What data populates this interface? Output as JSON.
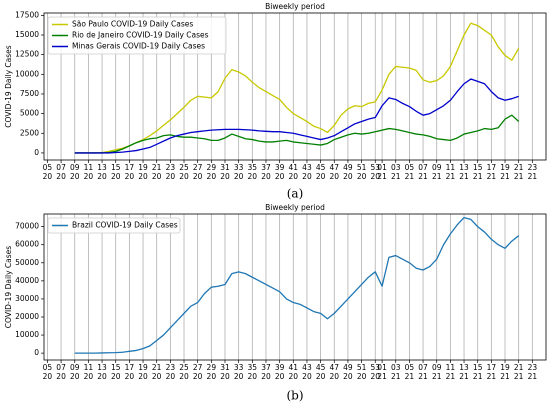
{
  "chart_data": [
    {
      "type": "line",
      "caption": "(a)",
      "x_label": "Biweekly period",
      "y_label": "COVID-19 Daily Cases",
      "x": [
        9,
        10,
        11,
        12,
        13,
        14,
        15,
        16,
        17,
        18,
        19,
        20,
        21,
        22,
        23,
        24,
        25,
        26,
        27,
        28,
        29,
        30,
        31,
        32,
        33,
        34,
        35,
        36,
        37,
        38,
        39,
        40,
        41,
        42,
        43,
        44,
        45,
        46,
        47,
        48,
        49,
        50,
        51,
        52,
        53,
        54,
        55,
        56,
        57,
        58,
        59,
        60,
        61,
        62,
        63,
        64,
        65,
        66,
        67,
        68,
        69,
        70,
        71,
        72,
        73,
        74
      ],
      "series": [
        {
          "name": "São Paulo COVID-19 Daily Cases",
          "color": "#c8c800",
          "values": [
            0,
            0,
            0,
            0,
            50,
            200,
            400,
            600,
            900,
            1300,
            1700,
            2200,
            2800,
            3500,
            4200,
            5000,
            5800,
            6700,
            7200,
            7100,
            7000,
            7800,
            9500,
            10600,
            10300,
            9800,
            9000,
            8300,
            7800,
            7300,
            6800,
            5800,
            5000,
            4500,
            4000,
            3400,
            3100,
            2600,
            3500,
            4800,
            5600,
            6000,
            5900,
            6300,
            6500,
            8000,
            10000,
            11000,
            10900,
            10800,
            10500,
            9300,
            9000,
            9200,
            9800,
            11000,
            13000,
            15000,
            16500,
            16200,
            15600,
            15000,
            13500,
            12400,
            11800,
            13300
          ]
        },
        {
          "name": "Rio de Janeiro COVID-19 Daily Cases",
          "color": "#008000",
          "values": [
            0,
            0,
            0,
            0,
            0,
            50,
            200,
            500,
            900,
            1300,
            1600,
            1800,
            1900,
            2200,
            2300,
            2100,
            2000,
            2000,
            1900,
            1800,
            1600,
            1600,
            1900,
            2400,
            2100,
            1800,
            1700,
            1500,
            1400,
            1400,
            1500,
            1600,
            1400,
            1300,
            1200,
            1100,
            1000,
            1200,
            1700,
            2000,
            2300,
            2500,
            2400,
            2500,
            2700,
            2900,
            3100,
            3000,
            2800,
            2600,
            2400,
            2300,
            2100,
            1800,
            1700,
            1600,
            1900,
            2400,
            2600,
            2800,
            3100,
            3000,
            3200,
            4300,
            4800,
            4000
          ]
        },
        {
          "name": "Minas Gerais COVID-19 Daily Cases",
          "color": "#0000cd",
          "values": [
            0,
            0,
            0,
            0,
            0,
            0,
            50,
            100,
            200,
            300,
            500,
            700,
            1100,
            1500,
            1900,
            2200,
            2400,
            2600,
            2700,
            2800,
            2900,
            2950,
            3000,
            3000,
            3000,
            2950,
            2900,
            2800,
            2750,
            2700,
            2700,
            2600,
            2500,
            2300,
            2100,
            1900,
            1700,
            1900,
            2200,
            2700,
            3200,
            3700,
            4000,
            4300,
            4500,
            6000,
            7000,
            6800,
            6300,
            5900,
            5300,
            4800,
            5000,
            5500,
            6000,
            6700,
            7800,
            8800,
            9400,
            9100,
            8800,
            7800,
            7000,
            6700,
            6900,
            7200
          ]
        }
      ],
      "xlim": [
        4.5,
        78
      ],
      "xticks": [
        {
          "value": 5,
          "label": [
            "05",
            "20"
          ]
        },
        {
          "value": 7,
          "label": [
            "07",
            "20"
          ]
        },
        {
          "value": 9,
          "label": [
            "09",
            "20"
          ]
        },
        {
          "value": 11,
          "label": [
            "11",
            "20"
          ]
        },
        {
          "value": 13,
          "label": [
            "13",
            "20"
          ]
        },
        {
          "value": 15,
          "label": [
            "15",
            "20"
          ]
        },
        {
          "value": 17,
          "label": [
            "17",
            "20"
          ]
        },
        {
          "value": 19,
          "label": [
            "19",
            "20"
          ]
        },
        {
          "value": 21,
          "label": [
            "21",
            "20"
          ]
        },
        {
          "value": 23,
          "label": [
            "23",
            "20"
          ]
        },
        {
          "value": 25,
          "label": [
            "25",
            "20"
          ]
        },
        {
          "value": 27,
          "label": [
            "27",
            "20"
          ]
        },
        {
          "value": 29,
          "label": [
            "29",
            "20"
          ]
        },
        {
          "value": 31,
          "label": [
            "31",
            "20"
          ]
        },
        {
          "value": 33,
          "label": [
            "33",
            "20"
          ]
        },
        {
          "value": 35,
          "label": [
            "35",
            "20"
          ]
        },
        {
          "value": 37,
          "label": [
            "37",
            "20"
          ]
        },
        {
          "value": 39,
          "label": [
            "39",
            "20"
          ]
        },
        {
          "value": 41,
          "label": [
            "41",
            "20"
          ]
        },
        {
          "value": 43,
          "label": [
            "43",
            "20"
          ]
        },
        {
          "value": 45,
          "label": [
            "45",
            "20"
          ]
        },
        {
          "value": 47,
          "label": [
            "47",
            "20"
          ]
        },
        {
          "value": 49,
          "label": [
            "49",
            "20"
          ]
        },
        {
          "value": 51,
          "label": [
            "51",
            "20"
          ]
        },
        {
          "value": 53,
          "label": [
            "53",
            "20"
          ]
        },
        {
          "value": 54,
          "label": [
            "01",
            "21"
          ]
        },
        {
          "value": 56,
          "label": [
            "03",
            "21"
          ]
        },
        {
          "value": 58,
          "label": [
            "05",
            "21"
          ]
        },
        {
          "value": 60,
          "label": [
            "07",
            "21"
          ]
        },
        {
          "value": 62,
          "label": [
            "09",
            "21"
          ]
        },
        {
          "value": 64,
          "label": [
            "11",
            "21"
          ]
        },
        {
          "value": 66,
          "label": [
            "13",
            "21"
          ]
        },
        {
          "value": 68,
          "label": [
            "15",
            "21"
          ]
        },
        {
          "value": 70,
          "label": [
            "17",
            "21"
          ]
        },
        {
          "value": 72,
          "label": [
            "19",
            "21"
          ]
        },
        {
          "value": 74,
          "label": [
            "21",
            "21"
          ]
        },
        {
          "value": 76,
          "label": [
            "23",
            "21"
          ]
        }
      ],
      "ylim": [
        -900,
        17800
      ],
      "yticks": [
        0,
        2500,
        5000,
        7500,
        10000,
        12500,
        15000,
        17500
      ],
      "grid": "x",
      "legend": "upper left"
    },
    {
      "type": "line",
      "caption": "(b)",
      "x_label": "Biweekly period",
      "y_label": "COVID-19 Daily Cases",
      "x": [
        9,
        10,
        11,
        12,
        13,
        14,
        15,
        16,
        17,
        18,
        19,
        20,
        21,
        22,
        23,
        24,
        25,
        26,
        27,
        28,
        29,
        30,
        31,
        32,
        33,
        34,
        35,
        36,
        37,
        38,
        39,
        40,
        41,
        42,
        43,
        44,
        45,
        46,
        47,
        48,
        49,
        50,
        51,
        52,
        53,
        54,
        55,
        56,
        57,
        58,
        59,
        60,
        61,
        62,
        63,
        64,
        65,
        66,
        67,
        68,
        69,
        70,
        71,
        72,
        73,
        74
      ],
      "series": [
        {
          "name": "Brazil COVID-19 Daily Cases",
          "color": "#1f77b4",
          "values": [
            0,
            0,
            0,
            0,
            100,
            200,
            300,
            500,
            1000,
            1500,
            2500,
            4000,
            7000,
            10000,
            14000,
            18000,
            22000,
            26000,
            28000,
            33000,
            36500,
            37000,
            38000,
            44000,
            45000,
            44000,
            42000,
            40000,
            38000,
            36000,
            34000,
            30000,
            28000,
            27000,
            25000,
            23000,
            22000,
            19000,
            22000,
            26000,
            30000,
            34000,
            38000,
            42000,
            45000,
            37000,
            53000,
            54000,
            52000,
            50000,
            47000,
            46000,
            48000,
            52000,
            60000,
            66000,
            71000,
            75000,
            74000,
            70000,
            67000,
            63000,
            60000,
            58000,
            62000,
            65000
          ]
        }
      ],
      "xlim": [
        4.5,
        78
      ],
      "xticks": [
        {
          "value": 5,
          "label": [
            "05",
            "20"
          ]
        },
        {
          "value": 7,
          "label": [
            "07",
            "20"
          ]
        },
        {
          "value": 9,
          "label": [
            "09",
            "20"
          ]
        },
        {
          "value": 11,
          "label": [
            "11",
            "20"
          ]
        },
        {
          "value": 13,
          "label": [
            "13",
            "20"
          ]
        },
        {
          "value": 15,
          "label": [
            "15",
            "20"
          ]
        },
        {
          "value": 17,
          "label": [
            "17",
            "20"
          ]
        },
        {
          "value": 19,
          "label": [
            "19",
            "20"
          ]
        },
        {
          "value": 21,
          "label": [
            "21",
            "20"
          ]
        },
        {
          "value": 23,
          "label": [
            "23",
            "20"
          ]
        },
        {
          "value": 25,
          "label": [
            "25",
            "20"
          ]
        },
        {
          "value": 27,
          "label": [
            "27",
            "20"
          ]
        },
        {
          "value": 29,
          "label": [
            "29",
            "20"
          ]
        },
        {
          "value": 31,
          "label": [
            "31",
            "20"
          ]
        },
        {
          "value": 33,
          "label": [
            "33",
            "20"
          ]
        },
        {
          "value": 35,
          "label": [
            "35",
            "20"
          ]
        },
        {
          "value": 37,
          "label": [
            "37",
            "20"
          ]
        },
        {
          "value": 39,
          "label": [
            "39",
            "20"
          ]
        },
        {
          "value": 41,
          "label": [
            "41",
            "20"
          ]
        },
        {
          "value": 43,
          "label": [
            "43",
            "20"
          ]
        },
        {
          "value": 45,
          "label": [
            "45",
            "20"
          ]
        },
        {
          "value": 47,
          "label": [
            "47",
            "20"
          ]
        },
        {
          "value": 49,
          "label": [
            "49",
            "20"
          ]
        },
        {
          "value": 51,
          "label": [
            "51",
            "20"
          ]
        },
        {
          "value": 53,
          "label": [
            "53",
            "20"
          ]
        },
        {
          "value": 54,
          "label": [
            "01",
            "21"
          ]
        },
        {
          "value": 56,
          "label": [
            "03",
            "21"
          ]
        },
        {
          "value": 58,
          "label": [
            "05",
            "21"
          ]
        },
        {
          "value": 60,
          "label": [
            "07",
            "21"
          ]
        },
        {
          "value": 62,
          "label": [
            "09",
            "21"
          ]
        },
        {
          "value": 64,
          "label": [
            "11",
            "21"
          ]
        },
        {
          "value": 66,
          "label": [
            "13",
            "21"
          ]
        },
        {
          "value": 68,
          "label": [
            "15",
            "21"
          ]
        },
        {
          "value": 70,
          "label": [
            "17",
            "21"
          ]
        },
        {
          "value": 72,
          "label": [
            "19",
            "21"
          ]
        },
        {
          "value": 74,
          "label": [
            "21",
            "21"
          ]
        },
        {
          "value": 76,
          "label": [
            "23",
            "21"
          ]
        }
      ],
      "ylim": [
        -3800,
        77000
      ],
      "yticks": [
        0,
        10000,
        20000,
        30000,
        40000,
        50000,
        60000,
        70000
      ],
      "grid": "x",
      "legend": "upper left"
    }
  ]
}
